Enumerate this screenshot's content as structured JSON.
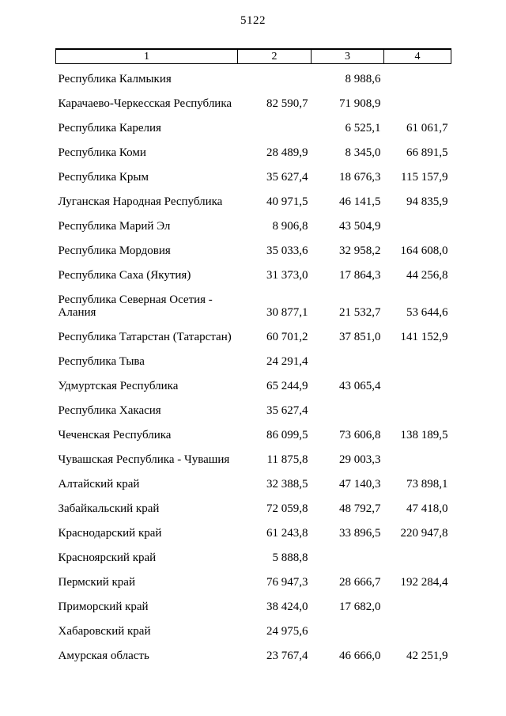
{
  "page": {
    "number": "5122"
  },
  "table": {
    "headers": [
      "1",
      "2",
      "3",
      "4"
    ],
    "rows": [
      {
        "region": "Республика Калмыкия",
        "c2": "",
        "c3": "8 988,6",
        "c4": ""
      },
      {
        "region": "Карачаево-Черкесская Республика",
        "c2": "82 590,7",
        "c3": "71 908,9",
        "c4": ""
      },
      {
        "region": "Республика Карелия",
        "c2": "",
        "c3": "6 525,1",
        "c4": "61 061,7"
      },
      {
        "region": "Республика Коми",
        "c2": "28 489,9",
        "c3": "8 345,0",
        "c4": "66 891,5"
      },
      {
        "region": "Республика Крым",
        "c2": "35 627,4",
        "c3": "18 676,3",
        "c4": "115 157,9"
      },
      {
        "region": "Луганская Народная Республика",
        "c2": "40 971,5",
        "c3": "46 141,5",
        "c4": "94 835,9"
      },
      {
        "region": "Республика Марий Эл",
        "c2": "8 906,8",
        "c3": "43 504,9",
        "c4": ""
      },
      {
        "region": "Республика Мордовия",
        "c2": "35 033,6",
        "c3": "32 958,2",
        "c4": "164 608,0"
      },
      {
        "region": "Республика Саха (Якутия)",
        "c2": "31 373,0",
        "c3": "17 864,3",
        "c4": "44 256,8"
      },
      {
        "region": "Республика Северная Осетия -\nАлания",
        "c2": "30 877,1",
        "c3": "21 532,7",
        "c4": "53 644,6"
      },
      {
        "region": "Республика Татарстан (Татарстан)",
        "c2": "60 701,2",
        "c3": "37 851,0",
        "c4": "141 152,9"
      },
      {
        "region": "Республика Тыва",
        "c2": "24 291,4",
        "c3": "",
        "c4": ""
      },
      {
        "region": "Удмуртская Республика",
        "c2": "65 244,9",
        "c3": "43 065,4",
        "c4": ""
      },
      {
        "region": "Республика Хакасия",
        "c2": "35 627,4",
        "c3": "",
        "c4": ""
      },
      {
        "region": "Чеченская Республика",
        "c2": "86 099,5",
        "c3": "73 606,8",
        "c4": "138 189,5"
      },
      {
        "region": "Чувашская Республика - Чувашия",
        "c2": "11 875,8",
        "c3": "29 003,3",
        "c4": ""
      },
      {
        "region": "Алтайский край",
        "c2": "32 388,5",
        "c3": "47 140,3",
        "c4": "73 898,1"
      },
      {
        "region": "Забайкальский край",
        "c2": "72 059,8",
        "c3": "48 792,7",
        "c4": "47 418,0"
      },
      {
        "region": "Краснодарский край",
        "c2": "61 243,8",
        "c3": "33 896,5",
        "c4": "220 947,8"
      },
      {
        "region": "Красноярский край",
        "c2": "5 888,8",
        "c3": "",
        "c4": ""
      },
      {
        "region": "Пермский край",
        "c2": "76 947,3",
        "c3": "28 666,7",
        "c4": "192 284,4"
      },
      {
        "region": "Приморский край",
        "c2": "38 424,0",
        "c3": "17 682,0",
        "c4": ""
      },
      {
        "region": "Хабаровский край",
        "c2": "24 975,6",
        "c3": "",
        "c4": ""
      },
      {
        "region": "Амурская область",
        "c2": "23 767,4",
        "c3": "46 666,0",
        "c4": "42 251,9"
      }
    ]
  }
}
